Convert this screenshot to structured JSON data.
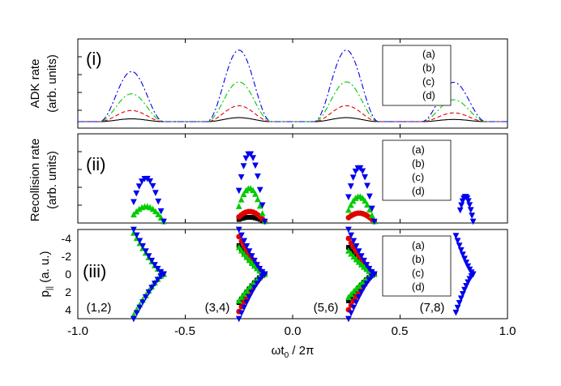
{
  "chart_data": {
    "type": "multi-panel",
    "shared_x": {
      "label": "ωt",
      "label_sub": "0",
      "label_suffix": " / 2π",
      "range": [
        -1.0,
        1.0
      ],
      "ticks": [
        -1.0,
        -0.5,
        0.0,
        0.5,
        1.0
      ],
      "tick_labels": [
        "-1.0",
        "-0.5",
        "0.0",
        "0.5",
        "1.0"
      ]
    },
    "colors": {
      "a": "#000000",
      "b": "#e00000",
      "c": "#00cc00",
      "d": "#0000ee"
    },
    "panels": [
      {
        "id": "i",
        "type": "line",
        "panel_label": "(i)",
        "ylabel_line1": "ADK rate",
        "ylabel_line2": "(arb. units)",
        "yrange": [
          0,
          100
        ],
        "legend": [
          "(a)",
          "(b)",
          "(c)",
          "(d)"
        ],
        "peaks_x": [
          -0.75,
          -0.25,
          0.25,
          0.75
        ],
        "peak_scale": [
          0.7,
          1.0,
          1.0,
          0.55
        ],
        "peak_halfwidth": 0.15,
        "series": [
          {
            "key": "a",
            "name": "(a)",
            "style": "solid",
            "peak_height": 5
          },
          {
            "key": "b",
            "name": "(b)",
            "style": "dashed",
            "peak_height": 20
          },
          {
            "key": "c",
            "name": "(c)",
            "style": "dashdot",
            "peak_height": 50
          },
          {
            "key": "d",
            "name": "(d)",
            "style": "dashdot",
            "peak_height": 90
          }
        ]
      },
      {
        "id": "ii",
        "type": "scatter",
        "panel_label": "(ii)",
        "ylabel_line1": "Recollision rate",
        "ylabel_line2": "(arb. units)",
        "yrange": [
          0,
          100
        ],
        "legend": [
          "(a)",
          "(b)",
          "(c)",
          "(d)"
        ],
        "markers": {
          "a": "square",
          "b": "circle",
          "c": "triangle-up",
          "d": "triangle-down"
        },
        "segments": [
          {
            "x0": -0.74,
            "x1": -0.6,
            "heights": {
              "a": 0,
              "b": 0,
              "c": 18,
              "d": 52
            }
          },
          {
            "x0": -0.25,
            "x1": -0.13,
            "heights": {
              "a": 5,
              "b": 12,
              "c": 40,
              "d": 82
            }
          },
          {
            "x0": 0.26,
            "x1": 0.38,
            "heights": {
              "a": 0,
              "b": 10,
              "c": 30,
              "d": 65
            }
          },
          {
            "x0": 0.78,
            "x1": 0.84,
            "heights": {
              "a": 0,
              "b": 0,
              "c": 0,
              "d": 30
            }
          }
        ]
      },
      {
        "id": "iii",
        "type": "scatter",
        "panel_label": "(iii)",
        "ylabel": "p",
        "ylabel_sub": "||",
        "ylabel_suffix": " (a. u.)",
        "yrange": [
          -5,
          5
        ],
        "yticks": [
          -4,
          -2,
          0,
          2,
          4
        ],
        "ytick_labels": [
          "-4",
          "-2",
          "0",
          "2",
          "4"
        ],
        "legend": [
          "(a)",
          "(b)",
          "(c)",
          "(d)"
        ],
        "annotations": [
          {
            "text": "(1,2)",
            "x": -0.92,
            "y": -3.7
          },
          {
            "text": "(3,4)",
            "x": -0.42,
            "y": -3.7
          },
          {
            "text": "(5,6)",
            "x": 0.1,
            "y": -3.7
          },
          {
            "text": "(7,8)",
            "x": 0.6,
            "y": -3.7
          }
        ],
        "segments": [
          {
            "x0": -0.74,
            "x1": -0.6,
            "amp": {
              "a": 0,
              "b": 0,
              "c": 4.6,
              "d": 5.0
            }
          },
          {
            "x0": -0.25,
            "x1": -0.13,
            "amp": {
              "a": 3.2,
              "b": 4.2,
              "c": 3.0,
              "d": 5.0
            }
          },
          {
            "x0": 0.26,
            "x1": 0.38,
            "amp": {
              "a": 3.0,
              "b": 4.0,
              "c": 2.6,
              "d": 5.0
            }
          },
          {
            "x0": 0.76,
            "x1": 0.84,
            "amp": {
              "a": 0,
              "b": 0,
              "c": 0,
              "d": 4.3
            }
          }
        ]
      }
    ]
  }
}
